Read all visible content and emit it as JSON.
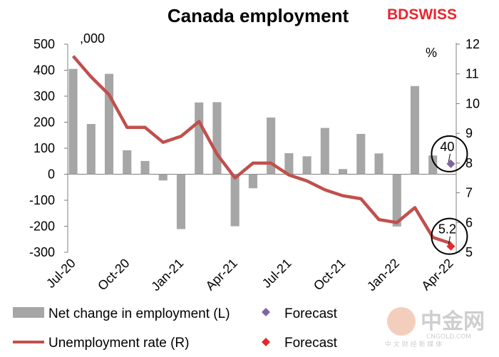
{
  "chart_data": {
    "type": "bar",
    "title": "Canada employment",
    "left_unit": ",000",
    "right_unit": "%",
    "categories": [
      "Jul-20",
      "Aug-20",
      "Sep-20",
      "Oct-20",
      "Nov-20",
      "Dec-20",
      "Jan-21",
      "Feb-21",
      "Mar-21",
      "Apr-21",
      "May-21",
      "Jun-21",
      "Jul-21",
      "Aug-21",
      "Sep-21",
      "Oct-21",
      "Nov-21",
      "Dec-21",
      "Jan-22",
      "Feb-22",
      "Mar-22",
      "Apr-22"
    ],
    "x_tick_labels": [
      "Jul-20",
      "Oct-20",
      "Jan-21",
      "Apr-21",
      "Jul-21",
      "Oct-21",
      "Jan-22",
      "Apr-22"
    ],
    "left_axis": {
      "ylim": [
        -300,
        500
      ],
      "ticks": [
        -300,
        -200,
        -100,
        0,
        100,
        200,
        300,
        400,
        500
      ]
    },
    "right_axis": {
      "ylim": [
        5,
        12
      ],
      "ticks": [
        5,
        6,
        7,
        8,
        9,
        10,
        11,
        12
      ]
    },
    "series": [
      {
        "name": "Net change in employment (L)",
        "type": "bar",
        "axis": "left",
        "color": "#a6a6a6",
        "values": [
          405,
          193,
          386,
          92,
          51,
          -24,
          -211,
          276,
          277,
          -200,
          -54,
          218,
          81,
          69,
          178,
          20,
          155,
          80,
          -201,
          339,
          72,
          null
        ]
      },
      {
        "name": "Unemployment rate (R)",
        "type": "line",
        "axis": "right",
        "color": "#c0504d",
        "values": [
          11.6,
          10.9,
          10.3,
          9.2,
          9.2,
          8.7,
          8.9,
          9.4,
          8.3,
          7.5,
          8.0,
          8.0,
          7.6,
          7.4,
          7.1,
          6.9,
          6.8,
          6.1,
          6.0,
          6.5,
          5.5,
          5.3
        ]
      },
      {
        "name": "Forecast",
        "type": "marker",
        "axis": "left",
        "marker": "diamond",
        "color": "#8064a2",
        "category": "Apr-22",
        "value": 40
      },
      {
        "name": "Forecast",
        "type": "marker",
        "axis": "right",
        "marker": "diamond",
        "color": "#e8262d",
        "category": "Apr-22",
        "value": 5.2
      }
    ],
    "annotations": [
      {
        "text": "40",
        "target": "employment-forecast"
      },
      {
        "text": "5.2",
        "target": "rate-forecast"
      }
    ],
    "grid": false,
    "legend_position": "bottom"
  },
  "legend": {
    "bar_label": "Net change in employment (L)",
    "bar_forecast_label": "Forecast",
    "line_label": "Unemployment rate (R)",
    "line_forecast_label": "Forecast"
  },
  "branding": {
    "logo_text_bd": "BD",
    "logo_text_swiss": "SWISS",
    "logo_color": "#e8262d",
    "watermark_main": "中金网",
    "watermark_url": "CNGOLD.COM",
    "watermark_sub": "中 文 财 经 新 媒 体"
  }
}
